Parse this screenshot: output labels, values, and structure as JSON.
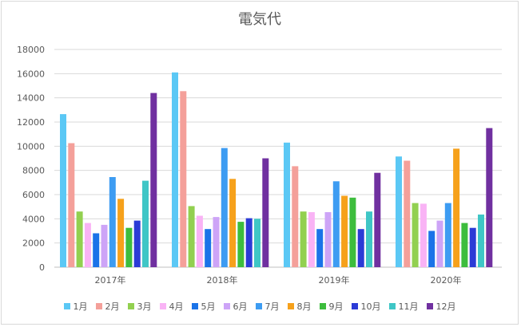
{
  "chart_data": {
    "type": "bar",
    "title": "電気代",
    "categories": [
      "2017年",
      "2018年",
      "2019年",
      "2020年"
    ],
    "ylim": [
      0,
      18000
    ],
    "yticks": [
      0,
      2000,
      4000,
      6000,
      8000,
      10000,
      12000,
      14000,
      16000,
      18000
    ],
    "grid": true,
    "legend_position": "bottom",
    "series": [
      {
        "name": "1月",
        "color": "#5bc8f5",
        "values": [
          12650,
          16100,
          10300,
          9150
        ]
      },
      {
        "name": "2月",
        "color": "#f4a09a",
        "values": [
          10250,
          14550,
          8350,
          8800
        ]
      },
      {
        "name": "3月",
        "color": "#92d050",
        "values": [
          4600,
          5050,
          4600,
          5300
        ]
      },
      {
        "name": "4月",
        "color": "#f9b3f5",
        "values": [
          3650,
          4250,
          4550,
          5250
        ]
      },
      {
        "name": "5月",
        "color": "#1a73e8",
        "values": [
          2800,
          3150,
          3150,
          3000
        ]
      },
      {
        "name": "6月",
        "color": "#cda4f7",
        "values": [
          3500,
          4150,
          4550,
          3850
        ]
      },
      {
        "name": "7月",
        "color": "#3d9cf2",
        "values": [
          7450,
          9850,
          7100,
          5300
        ]
      },
      {
        "name": "8月",
        "color": "#f6a11b",
        "values": [
          5650,
          7300,
          5900,
          9800
        ]
      },
      {
        "name": "9月",
        "color": "#3dbd3d",
        "values": [
          3250,
          3750,
          5750,
          3650
        ]
      },
      {
        "name": "10月",
        "color": "#2b3bd6",
        "values": [
          3850,
          4050,
          3150,
          3250
        ]
      },
      {
        "name": "11月",
        "color": "#3fc6c6",
        "values": [
          7150,
          4000,
          4600,
          4350
        ]
      },
      {
        "name": "12月",
        "color": "#7030a0",
        "values": [
          14400,
          9000,
          7800,
          11500
        ]
      }
    ]
  }
}
